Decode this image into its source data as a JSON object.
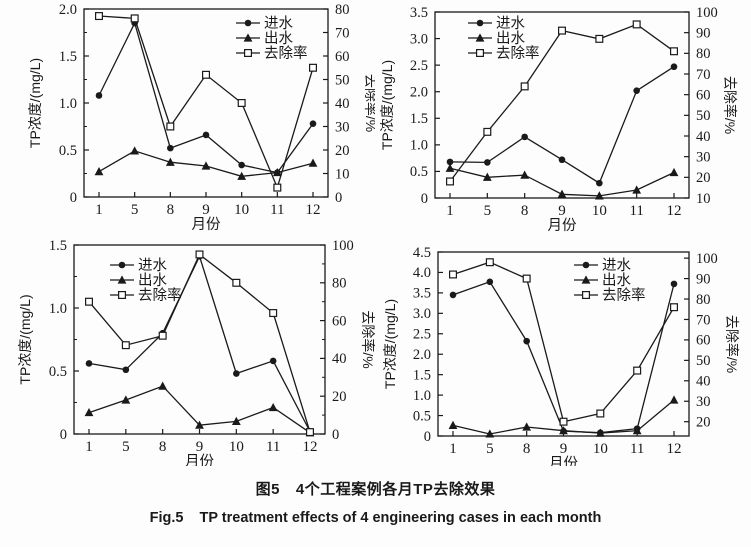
{
  "figure": {
    "caption_zh_prefix": "图5",
    "caption_zh_text": "4个工程案例各月TP去除效果",
    "caption_en_prefix": "Fig.5",
    "caption_en_text": "TP treatment effects of 4 engineering cases in each month"
  },
  "colors": {
    "line": "#1a1a1a",
    "marker_fill": "#1a1a1a",
    "square_fill": "#ffffff",
    "background": "#fdfdfd"
  },
  "chart_data": [
    {
      "type": "line",
      "case": "engineering-case-1",
      "position": "top-left",
      "xlabel": "月份",
      "ylabel_left": "TP浓度/(mg/L)",
      "ylabel_right": "去除率/%",
      "categories": [
        "1",
        "5",
        "8",
        "9",
        "10",
        "11",
        "12"
      ],
      "ylim_left": [
        0,
        2.0
      ],
      "ylim_right": [
        0,
        80
      ],
      "left_tick_labels": [
        "0",
        "0.5",
        "1.0",
        "1.5",
        "2.0"
      ],
      "right_tick_labels": [
        "0",
        "10",
        "20",
        "30",
        "40",
        "50",
        "60",
        "70",
        "80"
      ],
      "grid": false,
      "legend_position": "top-right-inside",
      "series": [
        {
          "id": "influent",
          "name": "进水",
          "marker": "circle",
          "axis": "left",
          "values": [
            1.08,
            1.85,
            0.52,
            0.66,
            0.34,
            0.26,
            0.78
          ]
        },
        {
          "id": "effluent",
          "name": "出水",
          "marker": "triangle",
          "axis": "left",
          "values": [
            0.27,
            0.49,
            0.37,
            0.33,
            0.22,
            0.26,
            0.36
          ]
        },
        {
          "id": "removal-rate",
          "name": "去除率",
          "marker": "square-open",
          "axis": "right",
          "values": [
            77,
            76,
            30,
            52,
            40,
            4,
            55
          ]
        }
      ]
    },
    {
      "type": "line",
      "case": "engineering-case-2",
      "position": "top-right",
      "xlabel": "月份",
      "ylabel_left": "TP浓度/(mg/L)",
      "ylabel_right": "去除率/%",
      "categories": [
        "1",
        "5",
        "8",
        "9",
        "10",
        "11",
        "12"
      ],
      "ylim_left": [
        0,
        3.5
      ],
      "ylim_right": [
        10,
        100
      ],
      "left_tick_labels": [
        "0",
        "0.5",
        "1.0",
        "1.5",
        "2.0",
        "2.5",
        "3.0",
        "3.5"
      ],
      "right_tick_labels": [
        "10",
        "20",
        "30",
        "40",
        "50",
        "60",
        "70",
        "80",
        "90",
        "100"
      ],
      "grid": false,
      "legend_position": "top-left-inside",
      "series": [
        {
          "id": "influent",
          "name": "进水",
          "marker": "circle",
          "axis": "left",
          "values": [
            0.68,
            0.67,
            1.15,
            0.72,
            0.28,
            2.02,
            2.47
          ]
        },
        {
          "id": "effluent",
          "name": "出水",
          "marker": "triangle",
          "axis": "left",
          "values": [
            0.56,
            0.39,
            0.43,
            0.07,
            0.04,
            0.15,
            0.48
          ]
        },
        {
          "id": "removal-rate",
          "name": "去除率",
          "marker": "square-open",
          "axis": "right",
          "values": [
            18,
            42,
            64,
            91,
            87,
            94,
            81
          ]
        }
      ]
    },
    {
      "type": "line",
      "case": "engineering-case-3",
      "position": "bottom-left",
      "xlabel": "月份",
      "ylabel_left": "TP浓度/(mg/L)",
      "ylabel_right": "去除率/%",
      "categories": [
        "1",
        "5",
        "8",
        "9",
        "10",
        "11",
        "12"
      ],
      "ylim_left": [
        0,
        1.5
      ],
      "ylim_right": [
        0,
        100
      ],
      "left_tick_labels": [
        "0",
        "0.5",
        "1.0",
        "1.5"
      ],
      "right_tick_labels": [
        "0",
        "20",
        "40",
        "60",
        "80",
        "100"
      ],
      "grid": false,
      "legend_position": "top-left-inside",
      "series": [
        {
          "id": "influent",
          "name": "进水",
          "marker": "circle",
          "axis": "left",
          "values": [
            0.56,
            0.51,
            0.8,
            1.41,
            0.48,
            0.58,
            0.02
          ]
        },
        {
          "id": "effluent",
          "name": "出水",
          "marker": "triangle",
          "axis": "left",
          "values": [
            0.17,
            0.27,
            0.38,
            0.07,
            0.1,
            0.21,
            0.01
          ]
        },
        {
          "id": "removal-rate",
          "name": "去除率",
          "marker": "square-open",
          "axis": "right",
          "values": [
            70,
            47,
            52,
            95,
            80,
            64,
            1
          ]
        }
      ]
    },
    {
      "type": "line",
      "case": "engineering-case-4",
      "position": "bottom-right",
      "xlabel": "月份",
      "ylabel_left": "TP浓度/(mg/L)",
      "ylabel_right": "去除率/%",
      "categories": [
        "1",
        "5",
        "8",
        "9",
        "10",
        "11",
        "12"
      ],
      "ylim_left": [
        0,
        4.5
      ],
      "ylim_right": [
        13,
        103
      ],
      "left_tick_labels": [
        "0",
        "0.5",
        "1.0",
        "1.5",
        "2.0",
        "2.5",
        "3.0",
        "3.5",
        "4.0",
        "4.5"
      ],
      "right_tick_labels": [
        "20",
        "30",
        "40",
        "50",
        "60",
        "70",
        "80",
        "90",
        "100"
      ],
      "grid": false,
      "legend_position": "top-center-inside",
      "series": [
        {
          "id": "influent",
          "name": "进水",
          "marker": "circle",
          "axis": "left",
          "values": [
            3.45,
            3.77,
            2.32,
            0.12,
            0.08,
            0.18,
            3.72
          ]
        },
        {
          "id": "effluent",
          "name": "出水",
          "marker": "triangle",
          "axis": "left",
          "values": [
            0.26,
            0.05,
            0.22,
            0.13,
            0.07,
            0.13,
            0.88
          ]
        },
        {
          "id": "removal-rate",
          "name": "去除率",
          "marker": "square-open",
          "axis": "right",
          "values": [
            92,
            98,
            90,
            20,
            24,
            45,
            76
          ]
        }
      ]
    }
  ]
}
